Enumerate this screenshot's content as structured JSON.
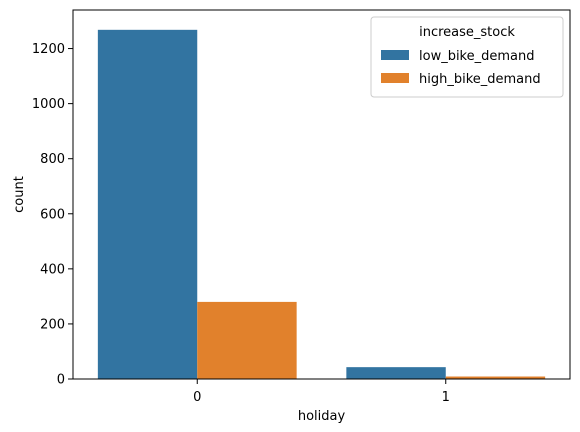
{
  "chart_data": {
    "type": "bar",
    "categories": [
      "0",
      "1"
    ],
    "xlabel": "holiday",
    "ylabel": "count",
    "ylim": [
      0,
      1340
    ],
    "yticks": [
      0,
      200,
      400,
      600,
      800,
      1000,
      1200
    ],
    "grid": false,
    "legend": {
      "title": "increase_stock",
      "placement": "top-right"
    },
    "series": [
      {
        "name": "low_bike_demand",
        "color": "#3274a1",
        "values": [
          1268,
          43
        ]
      },
      {
        "name": "high_bike_demand",
        "color": "#e1812c",
        "values": [
          280,
          9
        ]
      }
    ]
  }
}
